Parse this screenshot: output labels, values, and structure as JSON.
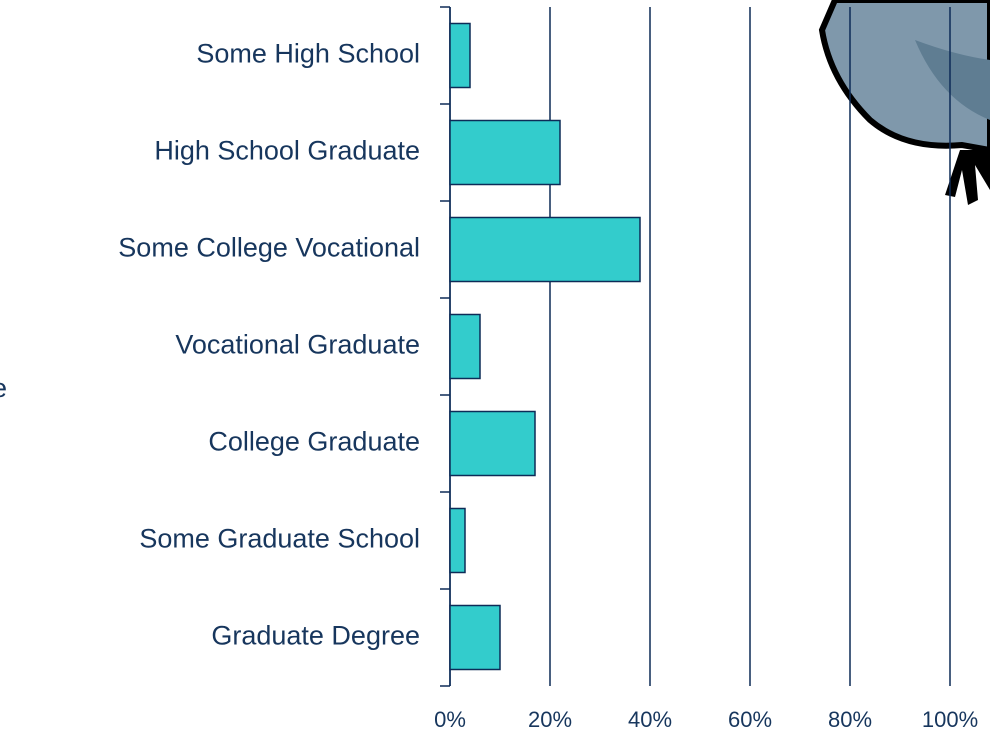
{
  "chart_data": {
    "type": "bar",
    "orientation": "horizontal",
    "categories": [
      "Some High School",
      "High School Graduate",
      "Some College Vocational",
      "Vocational Graduate",
      "College Graduate",
      "Some Graduate School",
      "Graduate Degree"
    ],
    "values": [
      4,
      22,
      38,
      6,
      17,
      3,
      10
    ],
    "color": "#33cccc",
    "xlim": [
      0,
      100
    ],
    "xticks": [
      {
        "value": 0,
        "label": "0%"
      },
      {
        "value": 20,
        "label": "20%"
      },
      {
        "value": 40,
        "label": "40%"
      },
      {
        "value": 60,
        "label": "60%"
      },
      {
        "value": 80,
        "label": "80%"
      },
      {
        "value": 100,
        "label": "100%"
      }
    ],
    "grid": true,
    "annotations": [
      "e"
    ]
  }
}
